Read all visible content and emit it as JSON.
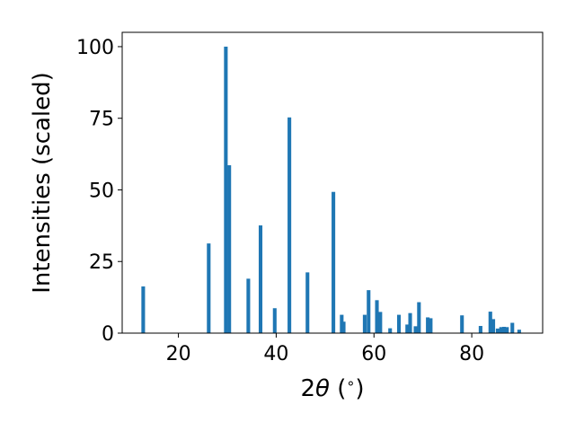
{
  "chart_data": {
    "type": "bar",
    "xlabel_parts": {
      "pre": "2",
      "theta": "θ",
      "open": " (",
      "deg": "∘",
      "close": ")"
    },
    "ylabel": "Intensities (scaled)",
    "xlim": [
      8.5,
      94.5
    ],
    "ylim": [
      0,
      105
    ],
    "xticks": [
      20,
      40,
      60,
      80
    ],
    "yticks": [
      0,
      25,
      50,
      75,
      100
    ],
    "bar_width_units": 0.75,
    "color": "#1f77b4",
    "grid": false,
    "x": [
      12.8,
      26.2,
      29.7,
      30.4,
      34.3,
      36.8,
      39.7,
      42.7,
      46.4,
      51.7,
      53.4,
      53.8,
      58.1,
      58.9,
      60.6,
      61.3,
      63.3,
      65.1,
      66.8,
      67.4,
      68.5,
      69.2,
      71.0,
      71.6,
      78.0,
      81.8,
      83.8,
      84.4,
      85.3,
      86.0,
      86.6,
      87.2,
      88.3,
      89.7
    ],
    "values": [
      16.3,
      31.3,
      100.0,
      58.6,
      19.0,
      37.6,
      8.7,
      75.3,
      21.2,
      49.3,
      6.4,
      4.0,
      6.4,
      15.0,
      11.5,
      7.4,
      1.7,
      6.4,
      3.0,
      7.0,
      2.4,
      10.8,
      5.5,
      5.2,
      6.2,
      2.5,
      7.5,
      4.9,
      1.6,
      2.1,
      2.2,
      2.1,
      3.6,
      1.2
    ]
  }
}
